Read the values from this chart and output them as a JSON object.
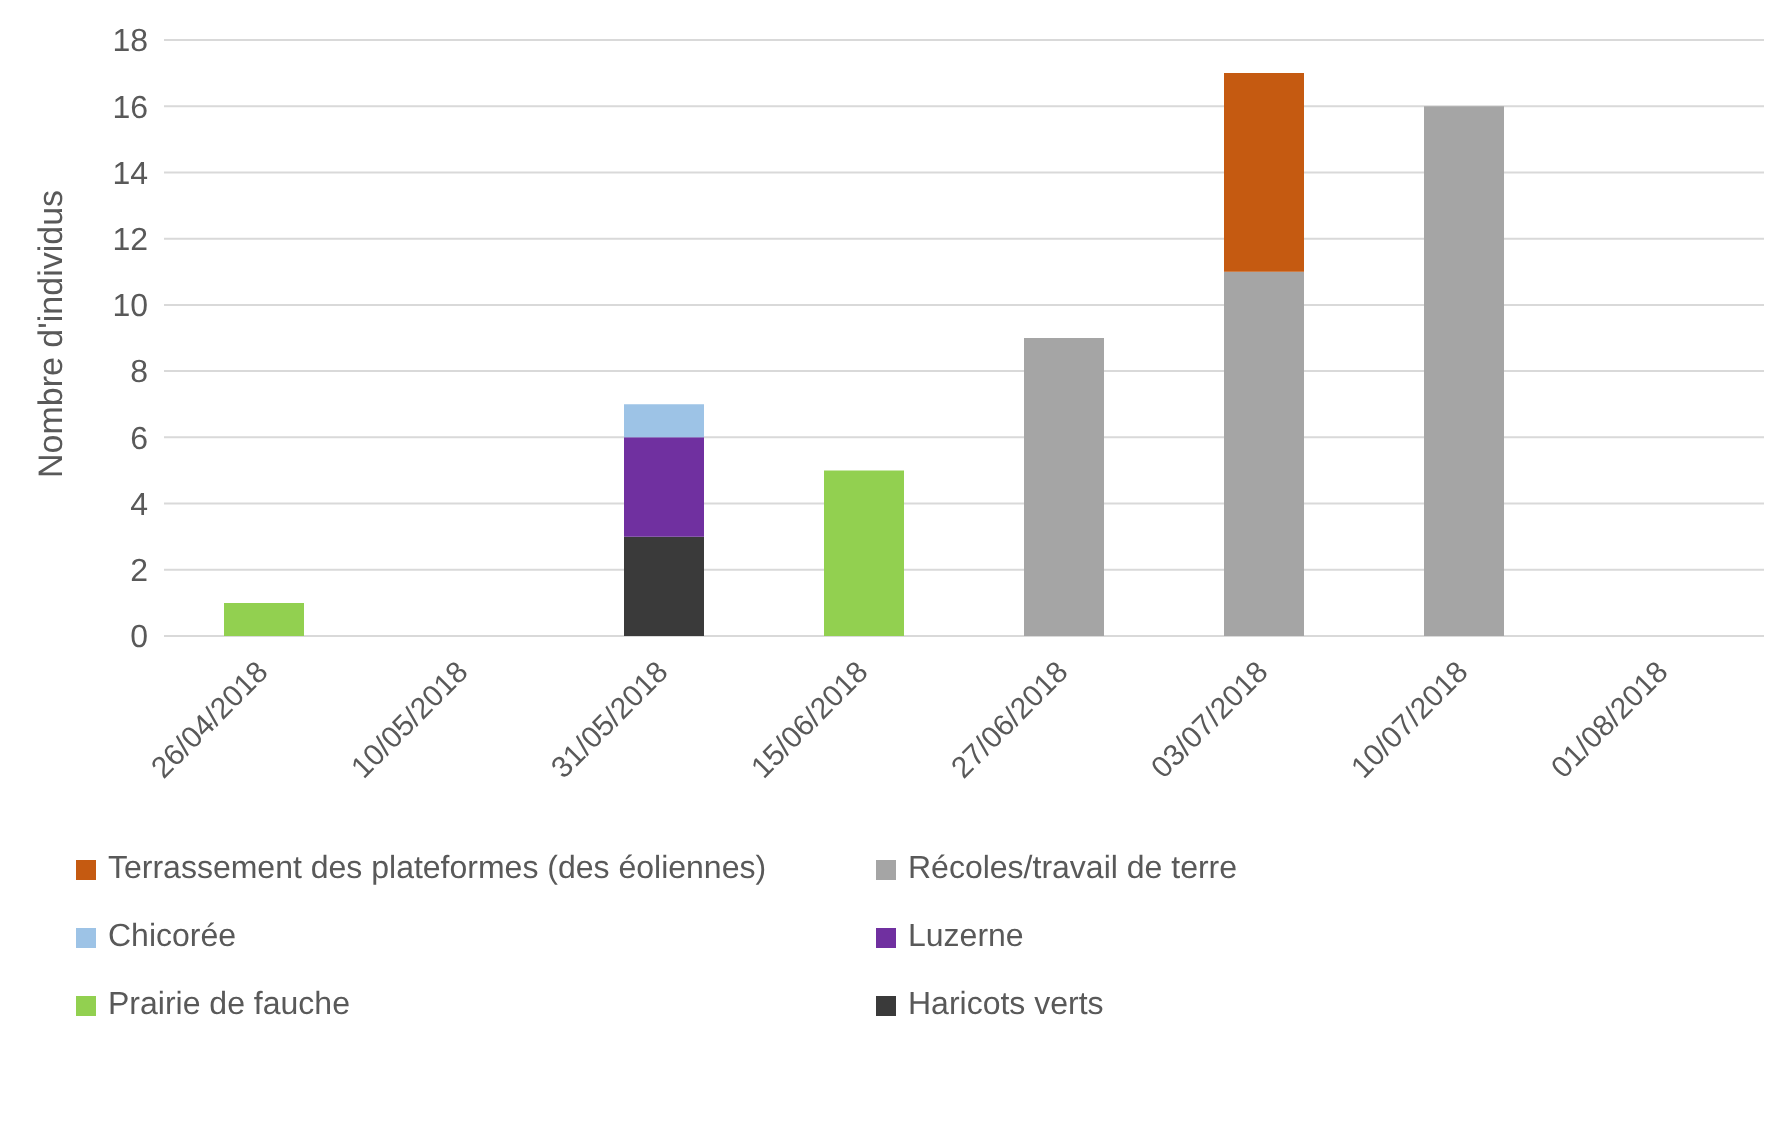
{
  "chart_data": {
    "type": "bar",
    "stacked": true,
    "ylabel": "Nombre d'individus",
    "categories": [
      "26/04/2018",
      "10/05/2018",
      "31/05/2018",
      "15/06/2018",
      "27/06/2018",
      "03/07/2018",
      "10/07/2018",
      "01/08/2018"
    ],
    "series": [
      {
        "name": "Haricots verts",
        "color": "#3a3a3a",
        "values": [
          null,
          null,
          3,
          null,
          null,
          null,
          null,
          null
        ]
      },
      {
        "name": "Prairie de fauche",
        "color": "#92d050",
        "values": [
          1,
          null,
          null,
          5,
          null,
          null,
          null,
          null
        ]
      },
      {
        "name": "Luzerne",
        "color": "#7030a0",
        "values": [
          null,
          null,
          3,
          null,
          null,
          null,
          null,
          null
        ]
      },
      {
        "name": "Chicorée",
        "color": "#9dc3e6",
        "values": [
          null,
          null,
          1,
          null,
          null,
          null,
          null,
          null
        ]
      },
      {
        "name": "Récoles/travail de terre",
        "color": "#a5a5a5",
        "values": [
          null,
          null,
          null,
          null,
          9,
          11,
          16,
          null
        ]
      },
      {
        "name": "Terrassement des plateformes (des éoliennes)",
        "color": "#c55a11",
        "values": [
          null,
          null,
          null,
          null,
          null,
          6,
          null,
          null
        ]
      }
    ],
    "ylim": [
      0,
      18
    ],
    "yticks": [
      0,
      2,
      4,
      6,
      8,
      10,
      12,
      14,
      16,
      18
    ],
    "grid": "y",
    "legend": "bottom"
  }
}
